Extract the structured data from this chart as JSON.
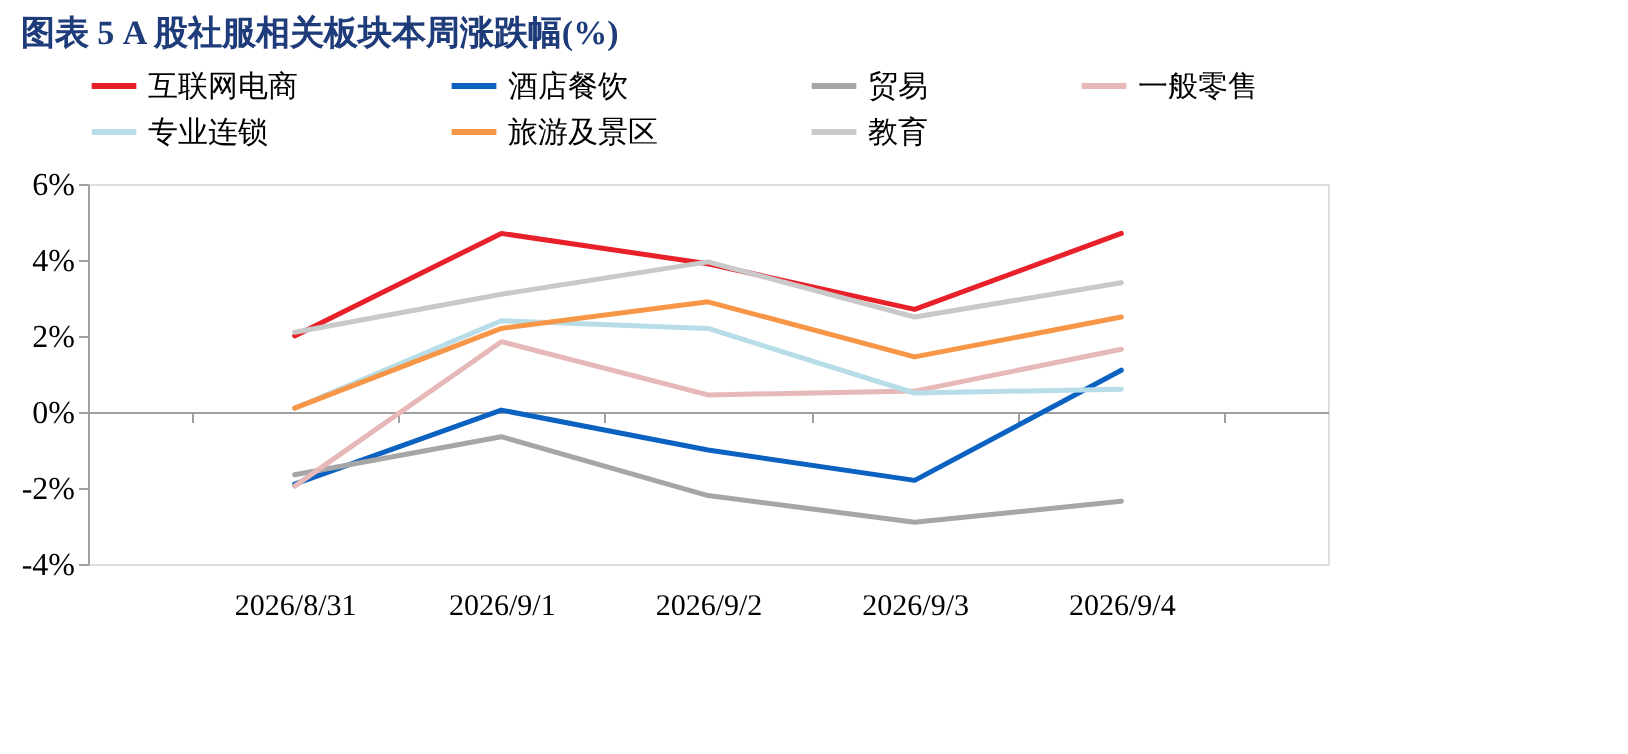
{
  "chart_data": {
    "type": "line",
    "title": "图表 5   A 股社服相关板块本周涨跌幅(%)",
    "categories": [
      "2026/8/31",
      "2026/9/1",
      "2026/9/2",
      "2026/9/3",
      "2026/9/4"
    ],
    "series": [
      {
        "name": "互联网电商",
        "color": "#e8202a",
        "values": [
          2.0,
          4.7,
          3.9,
          2.7,
          4.7
        ]
      },
      {
        "name": "酒店餐饮",
        "color": "#0b62c0",
        "values": [
          -1.9,
          0.05,
          -1.0,
          -1.8,
          1.1
        ]
      },
      {
        "name": "贸易",
        "color": "#a6a6a6",
        "values": [
          -1.65,
          -0.65,
          -2.2,
          -2.9,
          -2.35
        ]
      },
      {
        "name": "一般零售",
        "color": "#e6b8b7",
        "values": [
          -1.95,
          1.85,
          0.45,
          0.55,
          1.65
        ]
      },
      {
        "name": "专业连锁",
        "color": "#b7dde8",
        "values": [
          0.1,
          2.4,
          2.2,
          0.5,
          0.6
        ]
      },
      {
        "name": "旅游及景区",
        "color": "#f79646",
        "values": [
          0.1,
          2.2,
          2.9,
          1.45,
          2.5
        ]
      },
      {
        "name": "教育",
        "color": "#c9c9c9",
        "values": [
          2.1,
          3.1,
          3.95,
          2.5,
          3.4
        ]
      }
    ],
    "ylim": [
      -4,
      6
    ],
    "yticks": [
      {
        "value": -4,
        "label": "-4%"
      },
      {
        "value": -2,
        "label": "-2%"
      },
      {
        "value": 0,
        "label": "0%"
      },
      {
        "value": 2,
        "label": "2%"
      },
      {
        "value": 4,
        "label": "4%"
      },
      {
        "value": 6,
        "label": "6%"
      }
    ],
    "legend": "top"
  }
}
